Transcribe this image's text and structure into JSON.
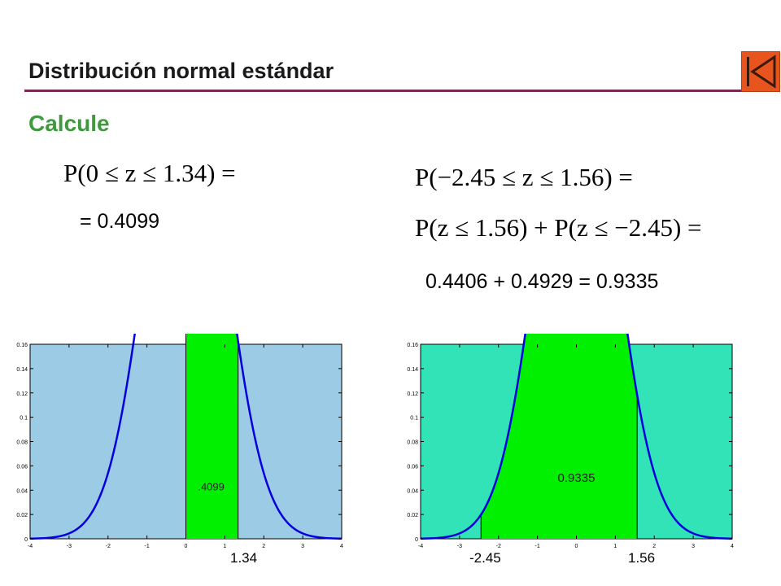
{
  "title": "Distribución normal estándar",
  "subtitle": "Calcule",
  "left": {
    "formula": "P(0 ≤ z ≤ 1.34) =",
    "result": "= 0.4099"
  },
  "right": {
    "formula1": "P(−2.45 ≤ z ≤ 1.56) =",
    "formula2": "P(z ≤ 1.56) + P(z ≤ −2.45) =",
    "result": "0.4406 + 0.4929 = 0.9335"
  },
  "colors": {
    "accent_rule": "#7a2a52",
    "subtitle": "#3f9a3f",
    "nav_button": "#e8541e",
    "left_bg": "#9ccbe6",
    "right_bg": "#33e3b8",
    "fill": "#00f000",
    "curve": "#0000dd"
  },
  "nav": {
    "icon": "first-slide-icon"
  },
  "chart_data": [
    {
      "type": "area",
      "title": "",
      "xlim": [
        -4,
        4
      ],
      "ylim": [
        0,
        0.16
      ],
      "x_ticks": [
        "-4",
        "-3",
        "-2",
        "-1",
        "0",
        "1",
        "2",
        "3",
        "4"
      ],
      "y_ticks": [
        "0",
        "0.02",
        "0.04",
        "0.06",
        "0.08",
        "0.1",
        "0.12",
        "0.14",
        "0.16"
      ],
      "shaded_range": [
        0,
        1.34
      ],
      "shaded_label": ".4099",
      "bound_labels": [
        "1.34"
      ]
    },
    {
      "type": "area",
      "title": "",
      "xlim": [
        -4,
        4
      ],
      "ylim": [
        0,
        0.16
      ],
      "x_ticks": [
        "-4",
        "-3",
        "-2",
        "-1",
        "0",
        "1",
        "2",
        "3",
        "4"
      ],
      "y_ticks": [
        "0",
        "0.02",
        "0.04",
        "0.06",
        "0.08",
        "0.1",
        "0.12",
        "0.14",
        "0.16"
      ],
      "shaded_range": [
        -2.45,
        1.56
      ],
      "shaded_label": "0.9335",
      "bound_labels": [
        "-2.45",
        "1.56"
      ]
    }
  ]
}
